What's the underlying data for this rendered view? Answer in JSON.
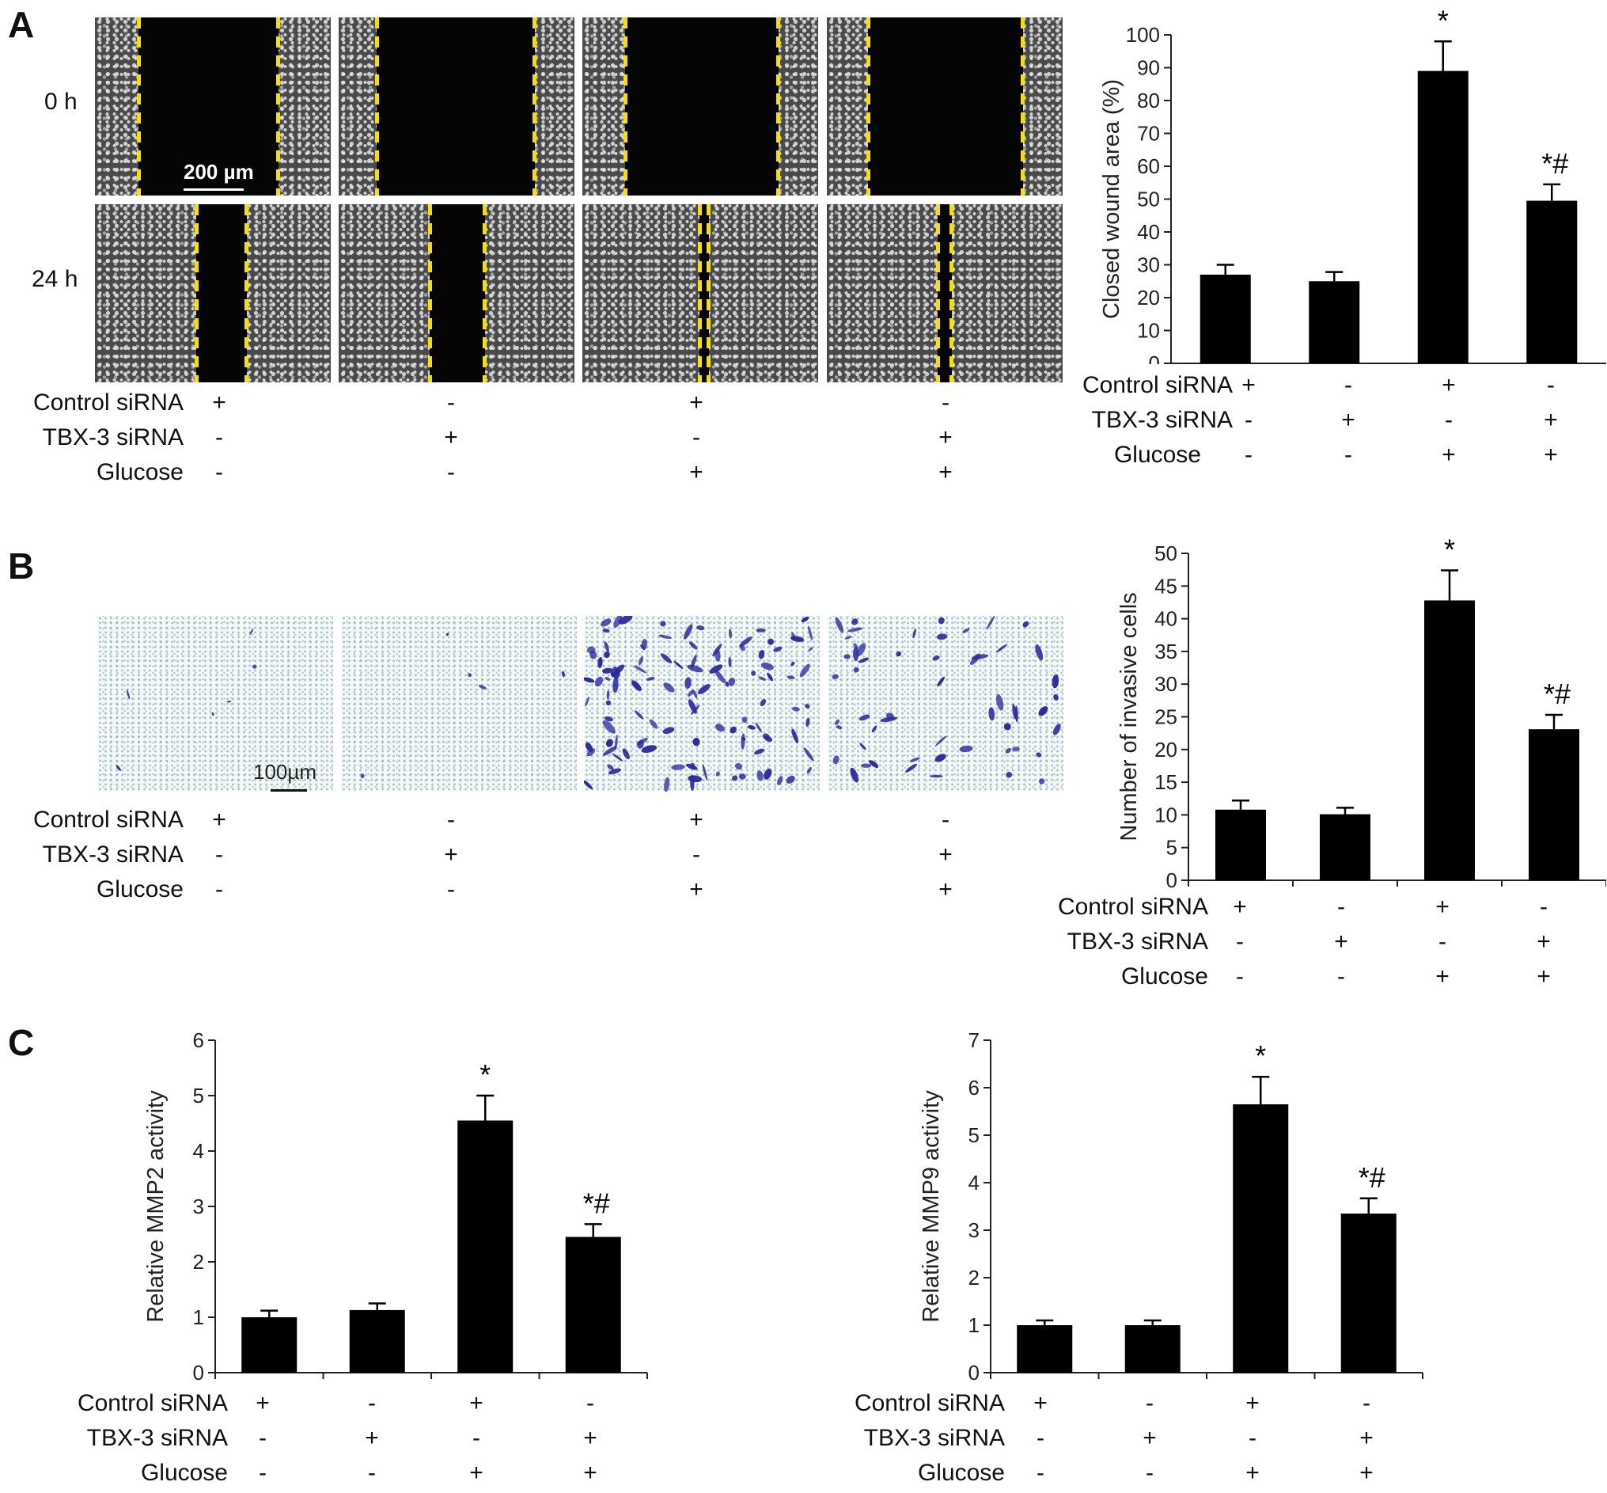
{
  "panel_labels": {
    "a": "A",
    "b": "B",
    "c": "C"
  },
  "timepoints": [
    "0 h",
    "24 h"
  ],
  "scale_bars": {
    "wound": "200 µm",
    "invasion": "100µm"
  },
  "condition_labels": [
    "Control siRNA",
    "TBX-3 siRNA",
    "Glucose"
  ],
  "condition_signs": [
    [
      "+",
      "-",
      "+",
      "-"
    ],
    [
      "-",
      "+",
      "-",
      "+"
    ],
    [
      "-",
      "-",
      "+",
      "+"
    ]
  ],
  "colors": {
    "bar": "#000000",
    "dash": "#f5e000",
    "stain": "#2a2aa0"
  },
  "chart_data": [
    {
      "id": "wound",
      "type": "bar",
      "ylabel": "Closed wound area (%)",
      "ylim": [
        0,
        100
      ],
      "ticks": [
        0,
        10,
        20,
        30,
        40,
        50,
        60,
        70,
        80,
        90,
        100
      ],
      "values": [
        27,
        25,
        89,
        49.5
      ],
      "errors": [
        3,
        2.8,
        9,
        5
      ],
      "annotations": [
        "",
        "",
        "*",
        "*#"
      ]
    },
    {
      "id": "invasion",
      "type": "bar",
      "ylabel": "Number of invasive cells",
      "ylim": [
        0,
        50
      ],
      "ticks": [
        0,
        5,
        10,
        15,
        20,
        25,
        30,
        35,
        40,
        45,
        50
      ],
      "values": [
        10.8,
        10.1,
        42.8,
        23.1
      ],
      "errors": [
        1.4,
        1.0,
        4.6,
        2.2
      ],
      "annotations": [
        "",
        "",
        "*",
        "*#"
      ]
    },
    {
      "id": "mmp2",
      "type": "bar",
      "ylabel": "Relative MMP2 activity",
      "ylim": [
        0,
        6
      ],
      "ticks": [
        0,
        1,
        2,
        3,
        4,
        5,
        6
      ],
      "values": [
        1.0,
        1.13,
        4.55,
        2.45
      ],
      "errors": [
        0.12,
        0.12,
        0.45,
        0.23
      ],
      "annotations": [
        "",
        "",
        "*",
        "*#"
      ]
    },
    {
      "id": "mmp9",
      "type": "bar",
      "ylabel": "Relative MMP9 activity",
      "ylim": [
        0,
        7
      ],
      "ticks": [
        0,
        1,
        2,
        3,
        4,
        5,
        6,
        7
      ],
      "values": [
        1.0,
        1.0,
        5.65,
        3.35
      ],
      "errors": [
        0.1,
        0.1,
        0.58,
        0.32
      ],
      "annotations": [
        "",
        "",
        "*",
        "*#"
      ]
    }
  ]
}
